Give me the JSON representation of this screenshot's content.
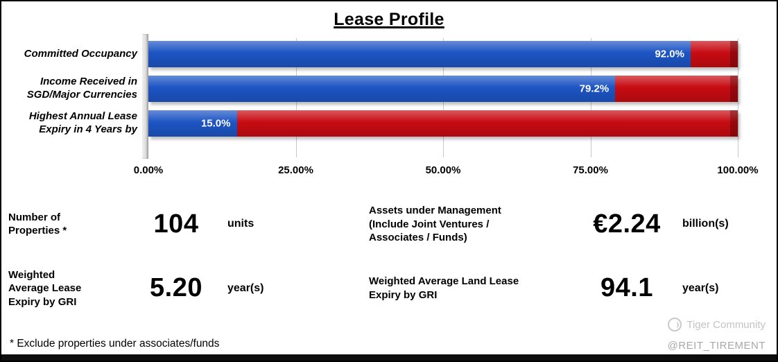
{
  "title": "Lease Profile",
  "chart_data": {
    "type": "bar",
    "orientation": "horizontal",
    "stacked": true,
    "categories": [
      "Committed Occupancy",
      "Income Received in\nSGD/Major Currencies",
      "Highest Annual Lease\nExpiry in 4 Years by"
    ],
    "series": [
      {
        "name": "achieved",
        "color": "#1d55c4",
        "values": [
          92.0,
          79.2,
          15.0
        ]
      },
      {
        "name": "remainder",
        "color": "#c70b12",
        "values": [
          8.0,
          20.8,
          85.0
        ]
      }
    ],
    "value_labels": [
      "92.0%",
      "79.2%",
      "15.0%"
    ],
    "xlim": [
      0,
      100
    ],
    "x_ticks": [
      "0.00%",
      "25.00%",
      "50.00%",
      "75.00%",
      "100.00%"
    ],
    "grid": true,
    "legend": "none"
  },
  "stats": {
    "properties": {
      "label": "Number of\nProperties *",
      "value": "104",
      "unit": "units"
    },
    "aum": {
      "label": "Assets under Management\n(Include Joint Ventures /\nAssociates / Funds)",
      "value": "€2.24",
      "unit": "billion(s)"
    },
    "wale": {
      "label": "Weighted\nAverage Lease\nExpiry by GRI",
      "value": "5.20",
      "unit": "year(s)"
    },
    "land_lease": {
      "label": "Weighted Average Land Lease\nExpiry by GRI",
      "value": "94.1",
      "unit": "year(s)"
    }
  },
  "footnote": "* Exclude properties under associates/funds",
  "watermark": {
    "brand": "Tiger Community",
    "handle": "@REIT_TIREMENT"
  }
}
